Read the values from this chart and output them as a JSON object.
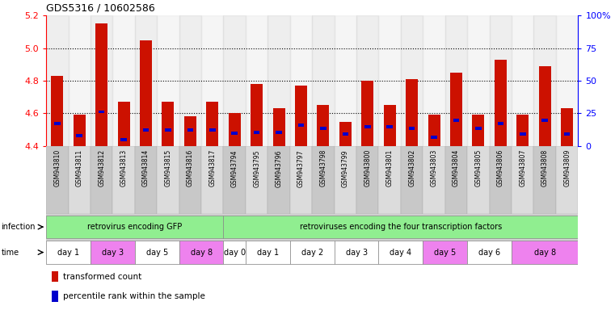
{
  "title": "GDS5316 / 10602586",
  "samples": [
    "GSM943810",
    "GSM943811",
    "GSM943812",
    "GSM943813",
    "GSM943814",
    "GSM943815",
    "GSM943816",
    "GSM943817",
    "GSM943794",
    "GSM943795",
    "GSM943796",
    "GSM943797",
    "GSM943798",
    "GSM943799",
    "GSM943800",
    "GSM943801",
    "GSM943802",
    "GSM943803",
    "GSM943804",
    "GSM943805",
    "GSM943806",
    "GSM943807",
    "GSM943808",
    "GSM943809"
  ],
  "transformed_count": [
    4.83,
    4.59,
    5.15,
    4.67,
    5.05,
    4.67,
    4.58,
    4.67,
    4.6,
    4.78,
    4.63,
    4.77,
    4.65,
    4.55,
    4.8,
    4.65,
    4.81,
    4.59,
    4.85,
    4.59,
    4.93,
    4.59,
    4.89,
    4.63
  ],
  "percentile_bottom": [
    4.53,
    4.455,
    4.6,
    4.43,
    4.49,
    4.49,
    4.49,
    4.49,
    4.47,
    4.475,
    4.475,
    4.52,
    4.5,
    4.465,
    4.51,
    4.51,
    4.5,
    4.445,
    4.55,
    4.5,
    4.53,
    4.465,
    4.55,
    4.465
  ],
  "percentile_height": [
    0.018,
    0.018,
    0.018,
    0.018,
    0.018,
    0.018,
    0.018,
    0.018,
    0.018,
    0.018,
    0.018,
    0.018,
    0.018,
    0.018,
    0.018,
    0.018,
    0.018,
    0.018,
    0.018,
    0.018,
    0.018,
    0.018,
    0.018,
    0.018
  ],
  "ymin": 4.4,
  "ymax": 5.2,
  "yticks_left": [
    4.4,
    4.6,
    4.8,
    5.0,
    5.2
  ],
  "yticks_right": [
    0,
    25,
    50,
    75,
    100
  ],
  "ytick_labels_right": [
    "0",
    "25",
    "50",
    "75",
    "100%"
  ],
  "grid_yticks": [
    4.6,
    4.8,
    5.0
  ],
  "bar_color": "#cc1100",
  "percentile_color": "#0000cc",
  "infection_groups": [
    {
      "label": "retrovirus encoding GFP",
      "start": 0,
      "end": 8,
      "color": "#90ee90"
    },
    {
      "label": "retroviruses encoding the four transcription factors",
      "start": 8,
      "end": 24,
      "color": "#90ee90"
    }
  ],
  "time_groups": [
    {
      "label": "day 1",
      "start": 0,
      "end": 2,
      "color": "#ffffff"
    },
    {
      "label": "day 3",
      "start": 2,
      "end": 4,
      "color": "#ee82ee"
    },
    {
      "label": "day 5",
      "start": 4,
      "end": 6,
      "color": "#ffffff"
    },
    {
      "label": "day 8",
      "start": 6,
      "end": 8,
      "color": "#ee82ee"
    },
    {
      "label": "day 0",
      "start": 8,
      "end": 9,
      "color": "#ffffff"
    },
    {
      "label": "day 1",
      "start": 9,
      "end": 11,
      "color": "#ffffff"
    },
    {
      "label": "day 2",
      "start": 11,
      "end": 13,
      "color": "#ffffff"
    },
    {
      "label": "day 3",
      "start": 13,
      "end": 15,
      "color": "#ffffff"
    },
    {
      "label": "day 4",
      "start": 15,
      "end": 17,
      "color": "#ffffff"
    },
    {
      "label": "day 5",
      "start": 17,
      "end": 19,
      "color": "#ee82ee"
    },
    {
      "label": "day 6",
      "start": 19,
      "end": 21,
      "color": "#ffffff"
    },
    {
      "label": "day 8",
      "start": 21,
      "end": 24,
      "color": "#ee82ee"
    }
  ],
  "col_colors": [
    "#c8c8c8",
    "#e0e0e0",
    "#c8c8c8",
    "#e0e0e0",
    "#c8c8c8",
    "#e0e0e0",
    "#c8c8c8",
    "#e0e0e0",
    "#c8c8c8",
    "#e0e0e0",
    "#c8c8c8",
    "#e0e0e0",
    "#c8c8c8",
    "#e0e0e0",
    "#c8c8c8",
    "#e0e0e0",
    "#c8c8c8",
    "#e0e0e0",
    "#c8c8c8",
    "#e0e0e0",
    "#c8c8c8",
    "#e0e0e0",
    "#c8c8c8",
    "#e0e0e0"
  ]
}
